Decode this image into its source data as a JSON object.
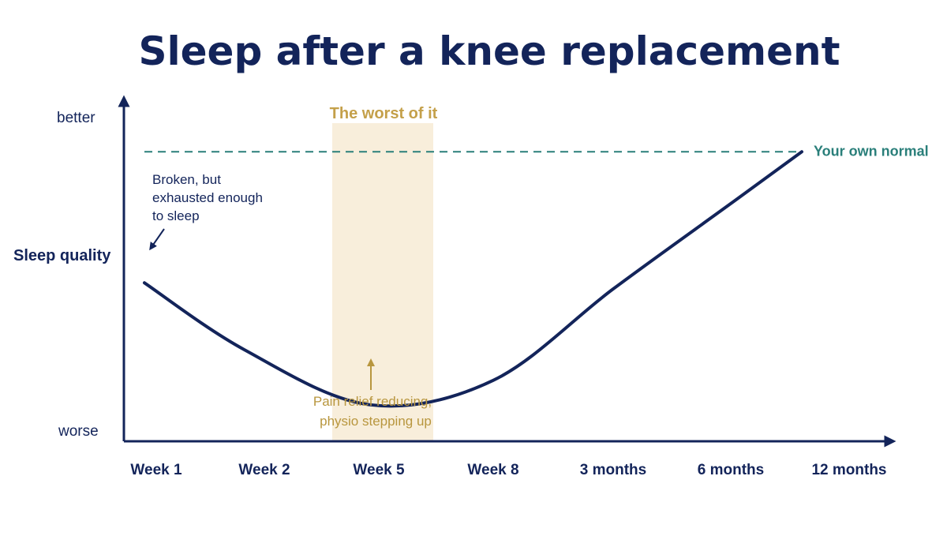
{
  "chart_data": {
    "type": "line",
    "title": "Sleep after a knee replacement",
    "ylabel": "Sleep quality",
    "y_top_label": "better",
    "y_bottom_label": "worse",
    "categories": [
      "Week 1",
      "Week 2",
      "Week 5",
      "Week 8",
      "3 months",
      "6 months",
      "12 months"
    ],
    "series": [
      {
        "values": [
          0.52,
          0.3,
          0.12,
          0.2,
          0.5,
          0.78,
          0.95
        ]
      }
    ],
    "ylim": [
      0,
      1
    ],
    "reference_line": {
      "label": "Your own normal",
      "value": 0.95,
      "color": "#2a7f7a"
    },
    "highlight_band": {
      "label": "The worst of it",
      "from": "Week 5",
      "color": "#f8eedb"
    },
    "annotations": [
      {
        "lines": [
          "Broken, but",
          "exhausted enough",
          "to sleep"
        ],
        "at": "Week 1"
      },
      {
        "lines": [
          "Pain relief reducing,",
          "physio stepping up"
        ],
        "at": "Week 5"
      }
    ],
    "colors": {
      "line": "#13245a",
      "axis": "#13245a",
      "annotation_gold": "#b8963e"
    },
    "grid": false
  }
}
